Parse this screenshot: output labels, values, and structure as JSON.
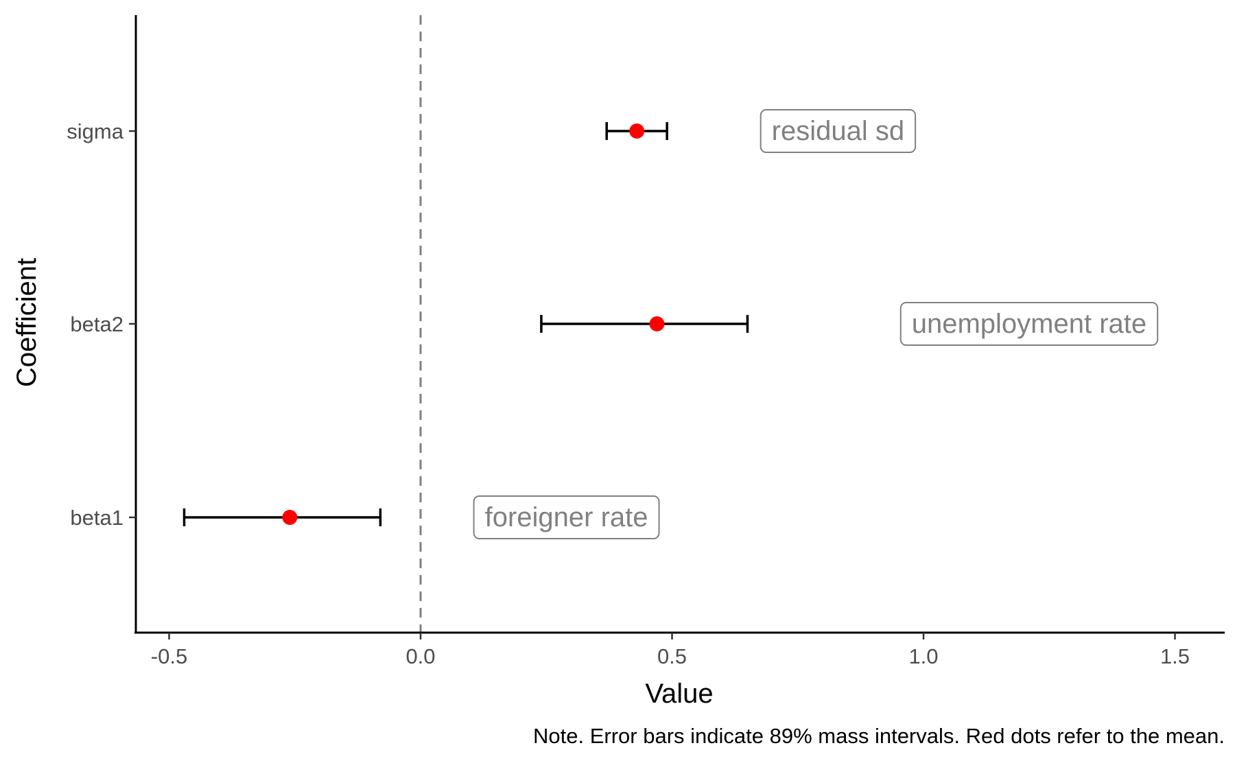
{
  "chart_data": {
    "type": "coefficient-plot",
    "title": "",
    "xlabel": "Value",
    "ylabel": "Coefficient",
    "xlim": [
      -0.57,
      1.6
    ],
    "x_ticks": [
      -0.5,
      0.0,
      0.5,
      1.0,
      1.5
    ],
    "x_tick_labels": [
      "-0.5",
      "0.0",
      "0.5",
      "1.0",
      "1.5"
    ],
    "reference_line": 0.0,
    "grid": false,
    "categories": [
      "sigma",
      "beta2",
      "beta1"
    ],
    "coefficients": [
      {
        "name": "sigma",
        "mean": 0.43,
        "lower": 0.37,
        "upper": 0.49,
        "label": "residual sd",
        "label_x": 0.83
      },
      {
        "name": "beta2",
        "mean": 0.47,
        "lower": 0.24,
        "upper": 0.65,
        "label": "unemployment rate",
        "label_x": 1.21
      },
      {
        "name": "beta1",
        "mean": -0.26,
        "lower": -0.47,
        "upper": -0.08,
        "label": "foreigner rate",
        "label_x": 0.29
      }
    ],
    "caption": "Note. Error bars indicate 89% mass intervals. Red dots refer to the mean.",
    "colors": {
      "point": "#ff0000",
      "interval": "#000000",
      "reference_line": "#808080",
      "label_text": "#808080",
      "axis": "#000000"
    }
  }
}
